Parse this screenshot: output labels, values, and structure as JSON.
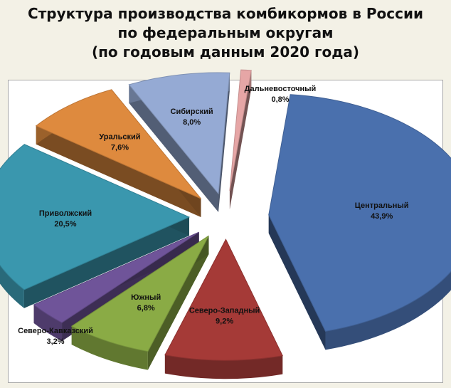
{
  "title": {
    "line1": "Структура производства комбикормов в России",
    "line2": "по федеральным округам",
    "line3": "(по годовым данным 2020 года)"
  },
  "chart_data": {
    "type": "pie",
    "slices": [
      {
        "name": "Центральный",
        "value": 43.9,
        "label": "43,9%",
        "color": "#4a70ad"
      },
      {
        "name": "Северо-Западный",
        "value": 9.2,
        "label": "9,2%",
        "color": "#a53a37"
      },
      {
        "name": "Южный",
        "value": 6.8,
        "label": "6,8%",
        "color": "#8aab45"
      },
      {
        "name": "Северо-Кавказский",
        "value": 3.2,
        "label": "3,2%",
        "color": "#6f5499"
      },
      {
        "name": "Приволжский",
        "value": 20.5,
        "label": "20,5%",
        "color": "#3a97ae"
      },
      {
        "name": "Уральский",
        "value": 7.6,
        "label": "7,6%",
        "color": "#de8a3e"
      },
      {
        "name": "Сибирский",
        "value": 8.0,
        "label": "8,0%",
        "color": "#95aad4"
      },
      {
        "name": "Дальневосточный",
        "value": 0.8,
        "label": "0,8%",
        "color": "#e6a6a6"
      }
    ],
    "legend": "none",
    "style": "3d-exploded"
  }
}
